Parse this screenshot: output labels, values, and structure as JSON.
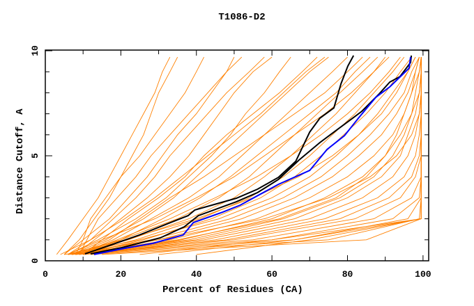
{
  "chart_data": {
    "type": "line",
    "title": "T1086-D2",
    "xlabel": "Percent of Residues (CA)",
    "ylabel": "Distance Cutoff, A",
    "xlim": [
      0,
      101.5
    ],
    "ylim": [
      0,
      10
    ],
    "xticks": [
      0,
      20,
      40,
      60,
      80,
      100
    ],
    "yticks": [
      0,
      5,
      10
    ],
    "x_tick_labels": [
      "0",
      "20",
      "40",
      "60",
      "80",
      "100"
    ],
    "y_tick_labels": [
      "0",
      "5",
      "10"
    ],
    "grid": false,
    "colors": {
      "models": "#ff8000",
      "highlight_black": "#000000",
      "highlight_blue": "#0000ff"
    },
    "model_cutoffs": [
      0.3,
      1,
      2,
      3,
      4,
      5,
      6,
      7,
      8,
      9,
      9.7
    ],
    "model_series_percent": [
      [
        3,
        6,
        10,
        14,
        17,
        20,
        23,
        26,
        29,
        31,
        33
      ],
      [
        5,
        9,
        13,
        17,
        20,
        23,
        26,
        28,
        30,
        33,
        35
      ],
      [
        8,
        10,
        12,
        16,
        20,
        25,
        29,
        33,
        37,
        40,
        42
      ],
      [
        9,
        11,
        14,
        19,
        24,
        28,
        33,
        38,
        43,
        48,
        52
      ],
      [
        5,
        10,
        17,
        22,
        27,
        31,
        35,
        40,
        44,
        48,
        50
      ],
      [
        6,
        12,
        18,
        24,
        29,
        33,
        38,
        43,
        48,
        54,
        58
      ],
      [
        8,
        13,
        20,
        27,
        33,
        38,
        42,
        46,
        50,
        55,
        60
      ],
      [
        10,
        15,
        22,
        30,
        37,
        42,
        48,
        55,
        62,
        68,
        72
      ],
      [
        6,
        14,
        24,
        32,
        38,
        44,
        49,
        53,
        58,
        62,
        65
      ],
      [
        7,
        16,
        26,
        34,
        40,
        46,
        52,
        58,
        64,
        70,
        75
      ],
      [
        9,
        18,
        28,
        38,
        46,
        52,
        58,
        64,
        70,
        76,
        80
      ],
      [
        10,
        20,
        31,
        41,
        49,
        56,
        63,
        70,
        77,
        82,
        86
      ],
      [
        8,
        17,
        25,
        33,
        42,
        50,
        58,
        66,
        74,
        80,
        84
      ],
      [
        6,
        15,
        29,
        40,
        50,
        58,
        66,
        74,
        81,
        87,
        91
      ],
      [
        6,
        20,
        35,
        46,
        54,
        60,
        66,
        72,
        78,
        84,
        88
      ],
      [
        7,
        22,
        38,
        50,
        58,
        65,
        71,
        77,
        82,
        87,
        90
      ],
      [
        8,
        24,
        41,
        54,
        63,
        70,
        76,
        82,
        87,
        92,
        95
      ],
      [
        9,
        26,
        44,
        57,
        66,
        73,
        79,
        85,
        90,
        94,
        97
      ],
      [
        6,
        25,
        46,
        60,
        70,
        77,
        83,
        88,
        92,
        96,
        98
      ],
      [
        7,
        28,
        49,
        63,
        73,
        80,
        86,
        91,
        95,
        97,
        99
      ],
      [
        8,
        30,
        52,
        66,
        76,
        83,
        89,
        93,
        96,
        98,
        99
      ],
      [
        9,
        33,
        56,
        70,
        80,
        87,
        92,
        95,
        97,
        99,
        99.5
      ],
      [
        10,
        36,
        60,
        74,
        84,
        90,
        94,
        97,
        98,
        99,
        99.5
      ],
      [
        6,
        38,
        63,
        78,
        87,
        92,
        95,
        97,
        99,
        99.5,
        99.5
      ],
      [
        7,
        40,
        66,
        80,
        89,
        94,
        96,
        98,
        99,
        99.5,
        99.5
      ],
      [
        8,
        42,
        70,
        84,
        92,
        96,
        98,
        99,
        99.5,
        99.5,
        99.5
      ],
      [
        9,
        45,
        74,
        88,
        95,
        98,
        99,
        99.5,
        99.5,
        99.5,
        99.5
      ],
      [
        10,
        48,
        78,
        91,
        97,
        99,
        99.5,
        99.5,
        99.5,
        99.5,
        99.5
      ],
      [
        6,
        50,
        82,
        94,
        98,
        99.5,
        99.5,
        99.5,
        99.5,
        99.5,
        99.5
      ],
      [
        7,
        55,
        87,
        97,
        99.5,
        99.5,
        99.5,
        99.5,
        99.5,
        99.5,
        99.5
      ],
      [
        8,
        60,
        92,
        99,
        99.5,
        99.5,
        99.5,
        99.5,
        99.5,
        99.5,
        99.5
      ],
      [
        10,
        66,
        96,
        99.5,
        99.5,
        99.5,
        99.5,
        99.5,
        99.5,
        99.5,
        99.5
      ],
      [
        12,
        75,
        99,
        99.5,
        99.5,
        99.5,
        99.5,
        99.5,
        99.5,
        99.5,
        99.5
      ],
      [
        15,
        85,
        99.5,
        99.5,
        99.5,
        99.5,
        99.5,
        99.5,
        99.5,
        99.5,
        99.5
      ],
      [
        25,
        60,
        99.5,
        99.5,
        99.5,
        99.5,
        99.5,
        99.5,
        99.5,
        99.5,
        99.5
      ],
      [
        30,
        66,
        99.5,
        99.5,
        99.5,
        99.5,
        99.5,
        99.5,
        99.5,
        99.5,
        99.5
      ],
      [
        40,
        70,
        99.5,
        99.5,
        99.5,
        99.5,
        99.5,
        99.5,
        99.5,
        99.5,
        99.5
      ],
      [
        5,
        30,
        58,
        75,
        86,
        93,
        97,
        99,
        99.5,
        99.5,
        99.5
      ],
      [
        7,
        35,
        62,
        77,
        85,
        90,
        93,
        95,
        97,
        98,
        99
      ],
      [
        6,
        21,
        40,
        55,
        67,
        76,
        83,
        89,
        93,
        96,
        98
      ],
      [
        9,
        19,
        33,
        45,
        56,
        65,
        73,
        80,
        86,
        91,
        94
      ],
      [
        4,
        12,
        21,
        29,
        36,
        43,
        50,
        57,
        63,
        69,
        74
      ]
    ],
    "highlight_series": [
      {
        "name": "black-1",
        "color": "#000000",
        "points": [
          [
            10.5,
            0.33
          ],
          [
            17.5,
            0.76
          ],
          [
            24.9,
            1.23
          ],
          [
            32.2,
            1.75
          ],
          [
            37.8,
            2.15
          ],
          [
            39.6,
            2.42
          ],
          [
            50.6,
            2.98
          ],
          [
            56.2,
            3.41
          ],
          [
            61.7,
            3.97
          ],
          [
            66.3,
            4.74
          ],
          [
            70.0,
            6.13
          ],
          [
            72.7,
            6.79
          ],
          [
            76.4,
            7.28
          ],
          [
            78.3,
            8.44
          ],
          [
            80.1,
            9.27
          ],
          [
            81.6,
            9.77
          ]
        ]
      },
      {
        "name": "black-2",
        "color": "#000000",
        "points": [
          [
            12.0,
            0.33
          ],
          [
            20.3,
            0.63
          ],
          [
            30.4,
            1.09
          ],
          [
            36.8,
            1.62
          ],
          [
            40.5,
            2.15
          ],
          [
            50.6,
            2.81
          ],
          [
            56.2,
            3.25
          ],
          [
            61.7,
            3.87
          ],
          [
            67.2,
            4.8
          ],
          [
            72.7,
            5.63
          ],
          [
            76.4,
            6.13
          ],
          [
            80.1,
            6.62
          ],
          [
            83.8,
            7.12
          ],
          [
            88.4,
            7.95
          ],
          [
            91.2,
            8.51
          ],
          [
            93.9,
            8.77
          ],
          [
            96.7,
            9.44
          ],
          [
            96.9,
            9.77
          ]
        ]
      },
      {
        "name": "blue",
        "color": "#0000ff",
        "points": [
          [
            12.9,
            0.3
          ],
          [
            21.2,
            0.6
          ],
          [
            28.5,
            0.83
          ],
          [
            36.5,
            1.23
          ],
          [
            39.2,
            1.82
          ],
          [
            47.0,
            2.32
          ],
          [
            51.6,
            2.65
          ],
          [
            61.7,
            3.64
          ],
          [
            70.0,
            4.3
          ],
          [
            74.6,
            5.3
          ],
          [
            79.2,
            5.96
          ],
          [
            82.9,
            6.79
          ],
          [
            87.5,
            7.78
          ],
          [
            91.2,
            8.28
          ],
          [
            96.3,
            9.17
          ],
          [
            96.7,
            9.7
          ]
        ]
      }
    ]
  }
}
